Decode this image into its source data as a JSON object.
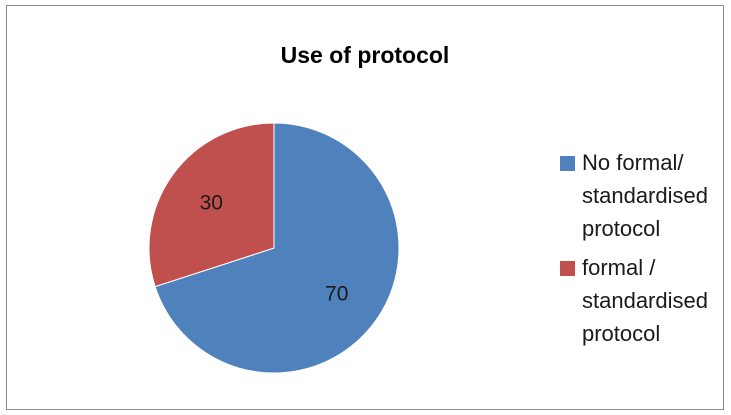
{
  "chart_data": {
    "type": "pie",
    "title": "Use of protocol",
    "slices": [
      {
        "label": "No formal/ standardised protocol",
        "value": 70,
        "color": "#4F81BD"
      },
      {
        "label": "formal / standardised protocol",
        "value": 30,
        "color": "#C0504D"
      }
    ],
    "legend": {
      "placement": "right"
    }
  }
}
